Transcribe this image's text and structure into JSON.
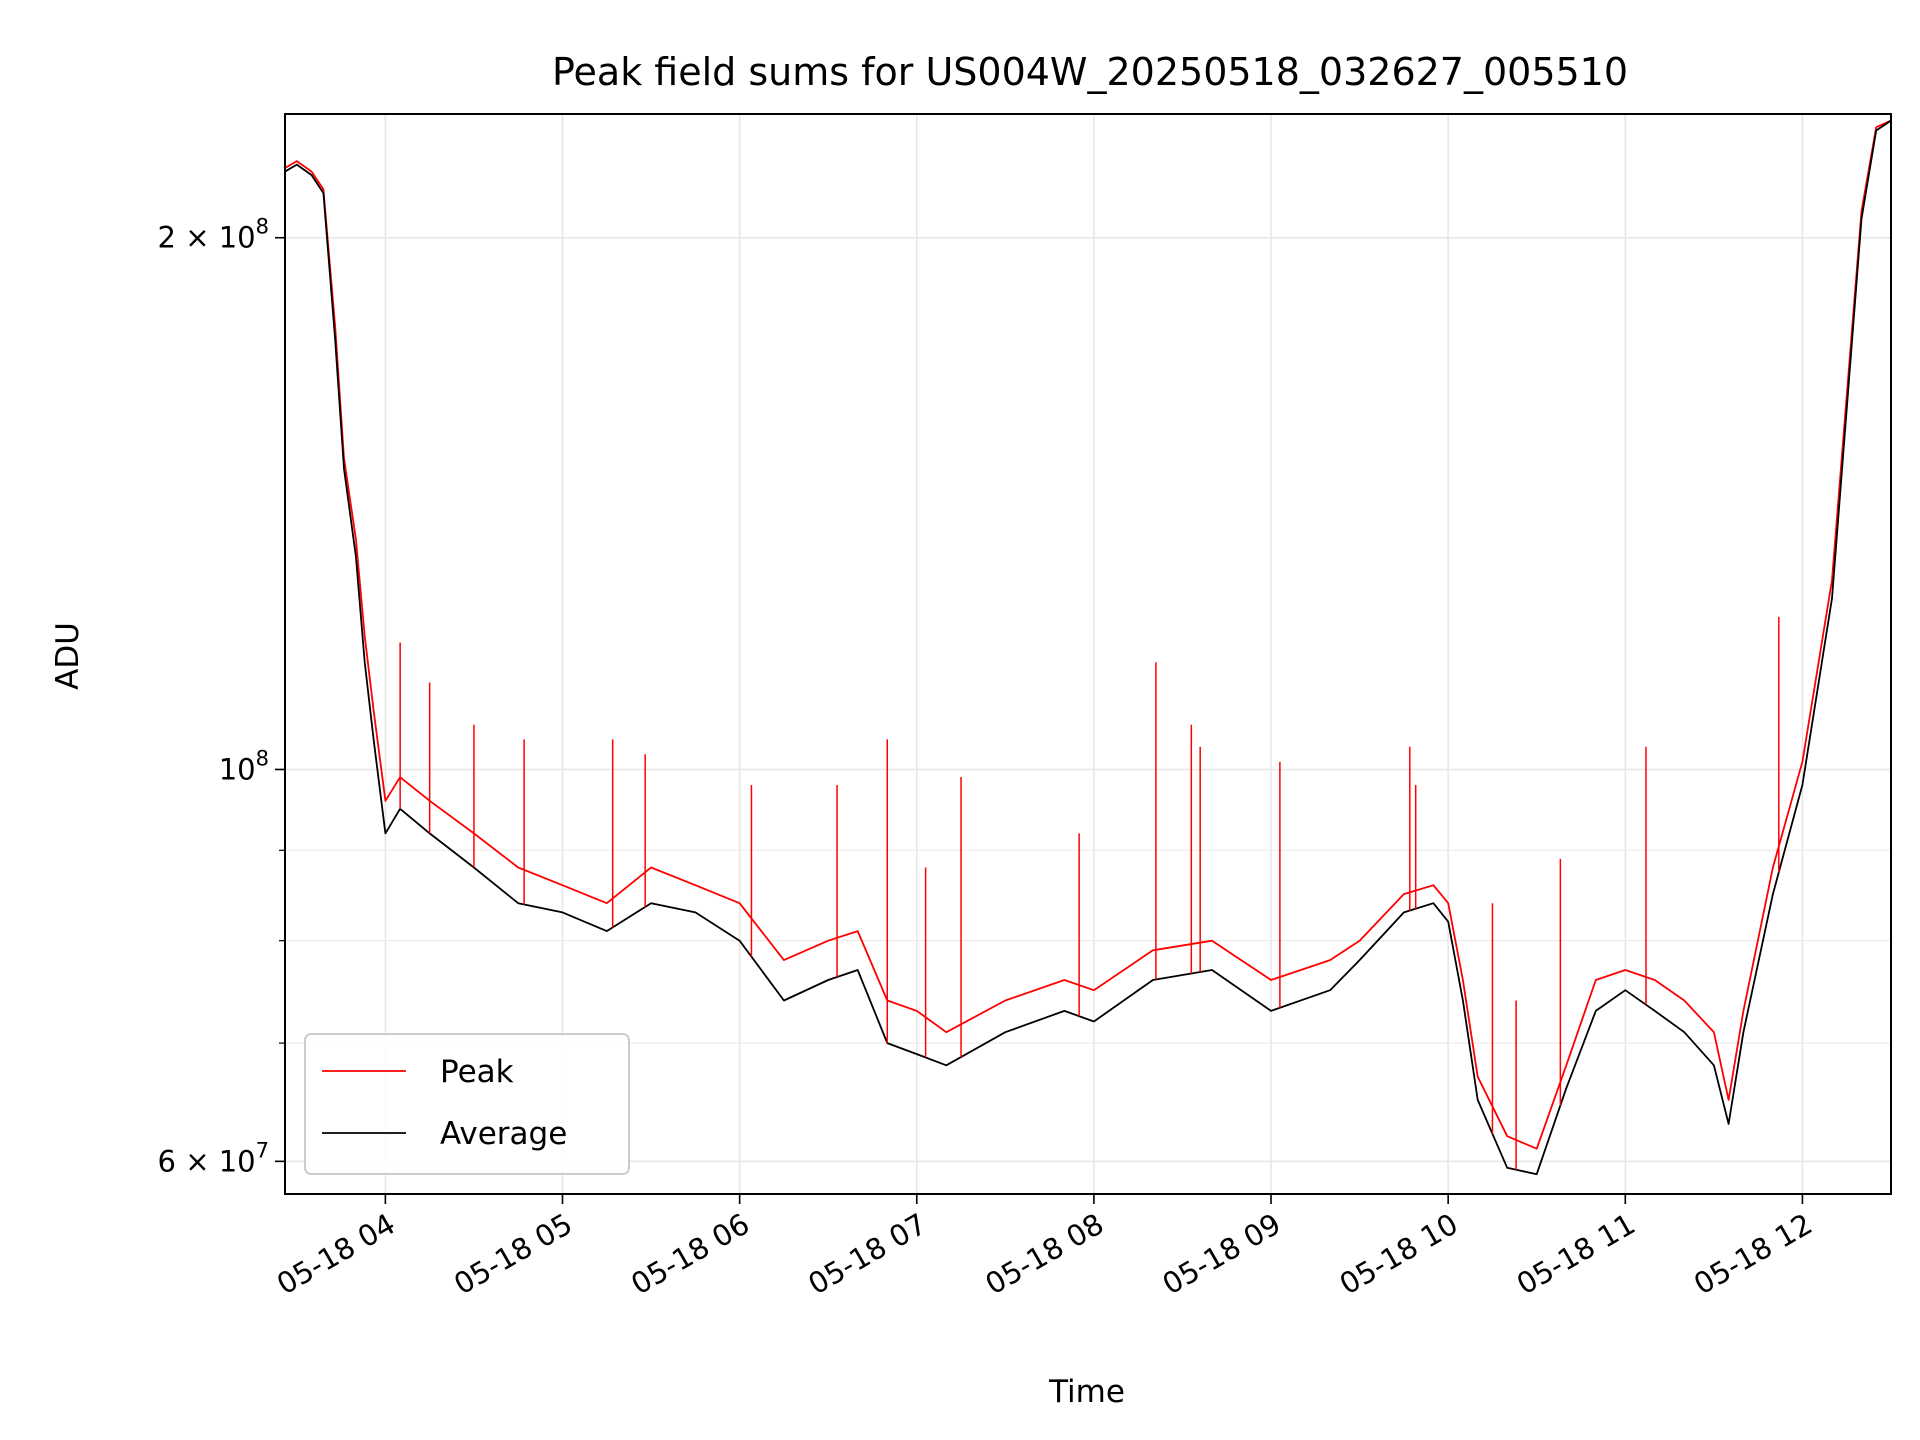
{
  "chart_data": {
    "type": "line",
    "title": "Peak field sums for US004W_20250518_032627_005510",
    "xlabel": "Time",
    "ylabel": "ADU",
    "yscale": "log",
    "xlim": [
      "2025-05-18T03:26",
      "2025-05-18T12:30"
    ],
    "ylim": [
      57500000,
      235000000
    ],
    "grid": true,
    "legend": {
      "placement": "lower-left",
      "entries": [
        "Peak",
        "Average"
      ]
    },
    "x_ticks": [
      {
        "t": "2025-05-18T04:00",
        "label": "05-18 04"
      },
      {
        "t": "2025-05-18T05:00",
        "label": "05-18 05"
      },
      {
        "t": "2025-05-18T06:00",
        "label": "05-18 06"
      },
      {
        "t": "2025-05-18T07:00",
        "label": "05-18 07"
      },
      {
        "t": "2025-05-18T08:00",
        "label": "05-18 08"
      },
      {
        "t": "2025-05-18T09:00",
        "label": "05-18 09"
      },
      {
        "t": "2025-05-18T10:00",
        "label": "05-18 10"
      },
      {
        "t": "2025-05-18T11:00",
        "label": "05-18 11"
      },
      {
        "t": "2025-05-18T12:00",
        "label": "05-18 12"
      }
    ],
    "y_ticks": [
      {
        "value": 60000000,
        "base": "6 × 10",
        "exp": "7"
      },
      {
        "value": 100000000,
        "base": "10",
        "exp": "8"
      },
      {
        "value": 200000000,
        "base": "2 × 10",
        "exp": "8"
      }
    ],
    "y_minor_ticks": [
      70000000,
      80000000,
      90000000
    ],
    "series": [
      {
        "name": "Average",
        "color": "#000000",
        "x": [
          "2025-05-18T03:26",
          "2025-05-18T03:30",
          "2025-05-18T03:35",
          "2025-05-18T03:39",
          "2025-05-18T03:43",
          "2025-05-18T03:46",
          "2025-05-18T03:50",
          "2025-05-18T03:53",
          "2025-05-18T03:56",
          "2025-05-18T04:00",
          "2025-05-18T04:05",
          "2025-05-18T04:15",
          "2025-05-18T04:30",
          "2025-05-18T04:45",
          "2025-05-18T05:00",
          "2025-05-18T05:15",
          "2025-05-18T05:30",
          "2025-05-18T05:45",
          "2025-05-18T06:00",
          "2025-05-18T06:15",
          "2025-05-18T06:30",
          "2025-05-18T06:40",
          "2025-05-18T06:50",
          "2025-05-18T07:00",
          "2025-05-18T07:10",
          "2025-05-18T07:30",
          "2025-05-18T07:50",
          "2025-05-18T08:00",
          "2025-05-18T08:20",
          "2025-05-18T08:40",
          "2025-05-18T09:00",
          "2025-05-18T09:20",
          "2025-05-18T09:30",
          "2025-05-18T09:45",
          "2025-05-18T09:55",
          "2025-05-18T10:00",
          "2025-05-18T10:05",
          "2025-05-18T10:10",
          "2025-05-18T10:20",
          "2025-05-18T10:30",
          "2025-05-18T10:40",
          "2025-05-18T10:50",
          "2025-05-18T11:00",
          "2025-05-18T11:10",
          "2025-05-18T11:20",
          "2025-05-18T11:30",
          "2025-05-18T11:35",
          "2025-05-18T11:40",
          "2025-05-18T11:50",
          "2025-05-18T12:00",
          "2025-05-18T12:10",
          "2025-05-18T12:20",
          "2025-05-18T12:25",
          "2025-05-18T12:30"
        ],
        "y": [
          218000000,
          220000000,
          217000000,
          212000000,
          175000000,
          148000000,
          132000000,
          115000000,
          104000000,
          92000000,
          95000000,
          92000000,
          88000000,
          84000000,
          83000000,
          81000000,
          84000000,
          83000000,
          80000000,
          74000000,
          76000000,
          77000000,
          70000000,
          69000000,
          68000000,
          71000000,
          73000000,
          72000000,
          76000000,
          77000000,
          73000000,
          75000000,
          78000000,
          83000000,
          84000000,
          82000000,
          74000000,
          65000000,
          59500000,
          59000000,
          66000000,
          73000000,
          75000000,
          73000000,
          71000000,
          68000000,
          63000000,
          71000000,
          85000000,
          98000000,
          125000000,
          205000000,
          230000000,
          233000000
        ]
      },
      {
        "name": "Peak",
        "color": "#ff0000",
        "x": [
          "2025-05-18T03:26",
          "2025-05-18T03:30",
          "2025-05-18T03:35",
          "2025-05-18T03:39",
          "2025-05-18T03:43",
          "2025-05-18T03:46",
          "2025-05-18T03:50",
          "2025-05-18T03:53",
          "2025-05-18T03:56",
          "2025-05-18T04:00",
          "2025-05-18T04:05",
          "2025-05-18T04:15",
          "2025-05-18T04:30",
          "2025-05-18T04:45",
          "2025-05-18T05:00",
          "2025-05-18T05:15",
          "2025-05-18T05:30",
          "2025-05-18T05:45",
          "2025-05-18T06:00",
          "2025-05-18T06:15",
          "2025-05-18T06:30",
          "2025-05-18T06:40",
          "2025-05-18T06:50",
          "2025-05-18T07:00",
          "2025-05-18T07:10",
          "2025-05-18T07:30",
          "2025-05-18T07:50",
          "2025-05-18T08:00",
          "2025-05-18T08:20",
          "2025-05-18T08:40",
          "2025-05-18T09:00",
          "2025-05-18T09:20",
          "2025-05-18T09:30",
          "2025-05-18T09:45",
          "2025-05-18T09:55",
          "2025-05-18T10:00",
          "2025-05-18T10:05",
          "2025-05-18T10:10",
          "2025-05-18T10:20",
          "2025-05-18T10:30",
          "2025-05-18T10:40",
          "2025-05-18T10:50",
          "2025-05-18T11:00",
          "2025-05-18T11:10",
          "2025-05-18T11:20",
          "2025-05-18T11:30",
          "2025-05-18T11:35",
          "2025-05-18T11:40",
          "2025-05-18T11:50",
          "2025-05-18T12:00",
          "2025-05-18T12:10",
          "2025-05-18T12:20",
          "2025-05-18T12:25",
          "2025-05-18T12:30"
        ],
        "y": [
          219000000,
          221000000,
          218000000,
          213000000,
          178000000,
          150000000,
          135000000,
          119000000,
          108000000,
          96000000,
          99000000,
          96000000,
          92000000,
          88000000,
          86000000,
          84000000,
          88000000,
          86000000,
          84000000,
          78000000,
          80000000,
          81000000,
          74000000,
          73000000,
          71000000,
          74000000,
          76000000,
          75000000,
          79000000,
          80000000,
          76000000,
          78000000,
          80000000,
          85000000,
          86000000,
          84000000,
          76000000,
          67000000,
          62000000,
          61000000,
          68000000,
          76000000,
          77000000,
          76000000,
          74000000,
          71000000,
          65000000,
          73000000,
          88000000,
          101000000,
          128000000,
          207000000,
          231000000,
          233000000
        ]
      }
    ],
    "peak_spikes": [
      {
        "t": "2025-05-18T04:05",
        "value": 118000000
      },
      {
        "t": "2025-05-18T04:15",
        "value": 112000000
      },
      {
        "t": "2025-05-18T04:30",
        "value": 106000000
      },
      {
        "t": "2025-05-18T04:47",
        "value": 104000000
      },
      {
        "t": "2025-05-18T05:17",
        "value": 104000000
      },
      {
        "t": "2025-05-18T05:28",
        "value": 102000000
      },
      {
        "t": "2025-05-18T06:04",
        "value": 98000000
      },
      {
        "t": "2025-05-18T06:33",
        "value": 98000000
      },
      {
        "t": "2025-05-18T06:50",
        "value": 104000000
      },
      {
        "t": "2025-05-18T07:03",
        "value": 88000000
      },
      {
        "t": "2025-05-18T07:15",
        "value": 99000000
      },
      {
        "t": "2025-05-18T07:55",
        "value": 92000000
      },
      {
        "t": "2025-05-18T08:21",
        "value": 115000000
      },
      {
        "t": "2025-05-18T08:33",
        "value": 106000000
      },
      {
        "t": "2025-05-18T08:36",
        "value": 103000000
      },
      {
        "t": "2025-05-18T09:03",
        "value": 101000000
      },
      {
        "t": "2025-05-18T09:47",
        "value": 103000000
      },
      {
        "t": "2025-05-18T09:49",
        "value": 98000000
      },
      {
        "t": "2025-05-18T10:15",
        "value": 84000000
      },
      {
        "t": "2025-05-18T10:23",
        "value": 74000000
      },
      {
        "t": "2025-05-18T10:38",
        "value": 89000000
      },
      {
        "t": "2025-05-18T11:07",
        "value": 103000000
      },
      {
        "t": "2025-05-18T11:52",
        "value": 122000000
      }
    ]
  }
}
